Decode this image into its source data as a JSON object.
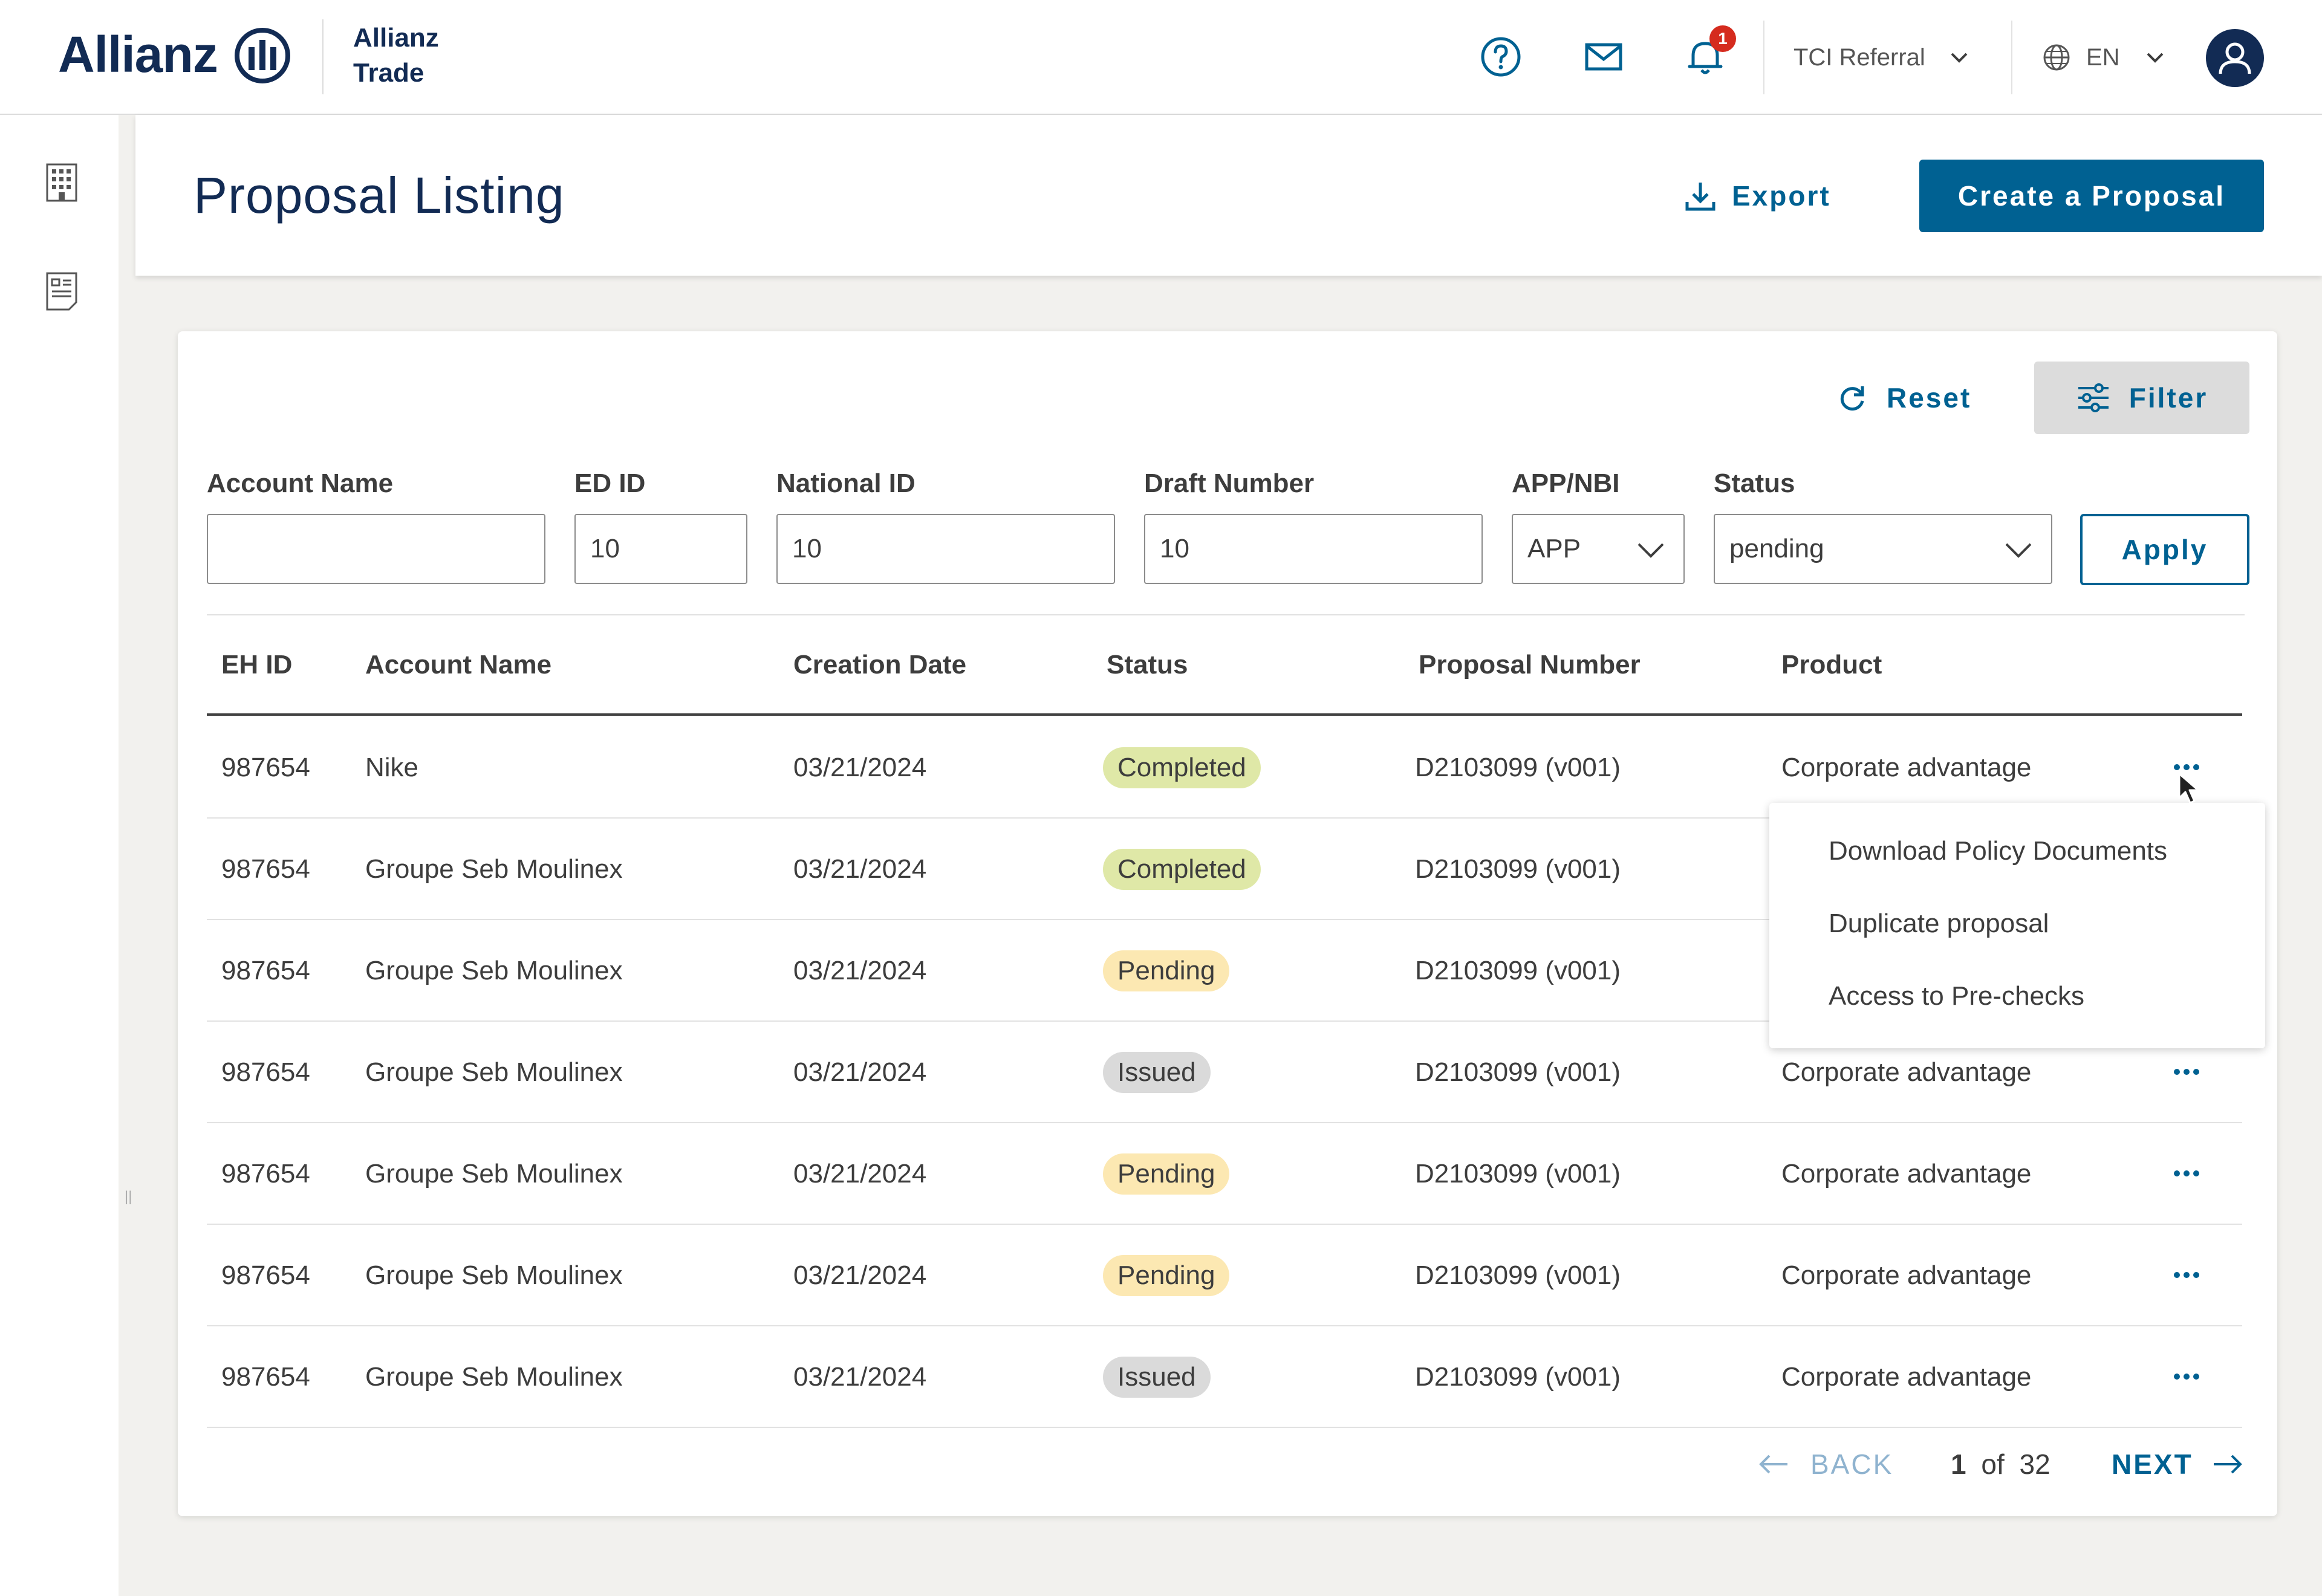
{
  "brand": {
    "name": "Allianz",
    "sub_line1": "Allianz",
    "sub_line2": "Trade"
  },
  "header": {
    "notification_count": "1",
    "referral_dropdown": "TCI Referral",
    "language": "EN",
    "icons": [
      "help-icon",
      "mail-icon",
      "bell-icon",
      "globe-icon",
      "user-icon"
    ]
  },
  "sidebar": {
    "icons": [
      "building-icon",
      "document-list-icon"
    ]
  },
  "page": {
    "title": "Proposal Listing",
    "export_label": "Export",
    "create_label": "Create a Proposal"
  },
  "filters": {
    "reset_label": "Reset",
    "filter_label": "Filter",
    "apply_label": "Apply",
    "fields": {
      "account_name": {
        "label": "Account Name",
        "value": ""
      },
      "ed_id": {
        "label": "ED ID",
        "value": "10"
      },
      "national_id": {
        "label": "National ID",
        "value": "10"
      },
      "draft_number": {
        "label": "Draft Number",
        "value": "10"
      },
      "app_nbi": {
        "label": "APP/NBI",
        "value": "APP"
      },
      "status": {
        "label": "Status",
        "value": "pending"
      }
    }
  },
  "table": {
    "columns": [
      "EH ID",
      "Account Name",
      "Creation Date",
      "Status",
      "Proposal Number",
      "Product"
    ],
    "rows": [
      {
        "eh_id": "987654",
        "account": "Nike",
        "date": "03/21/2024",
        "status": "Completed",
        "status_kind": "completed",
        "proposal": "D2103099 (v001)",
        "product": "Corporate advantage"
      },
      {
        "eh_id": "987654",
        "account": "Groupe Seb Moulinex",
        "date": "03/21/2024",
        "status": "Completed",
        "status_kind": "completed",
        "proposal": "D2103099 (v001)",
        "product": ""
      },
      {
        "eh_id": "987654",
        "account": "Groupe Seb Moulinex",
        "date": "03/21/2024",
        "status": "Pending",
        "status_kind": "pending",
        "proposal": "D2103099 (v001)",
        "product": ""
      },
      {
        "eh_id": "987654",
        "account": "Groupe Seb Moulinex",
        "date": "03/21/2024",
        "status": "Issued",
        "status_kind": "issued",
        "proposal": "D2103099 (v001)",
        "product": "Corporate advantage"
      },
      {
        "eh_id": "987654",
        "account": "Groupe Seb Moulinex",
        "date": "03/21/2024",
        "status": "Pending",
        "status_kind": "pending",
        "proposal": "D2103099 (v001)",
        "product": "Corporate advantage"
      },
      {
        "eh_id": "987654",
        "account": "Groupe Seb Moulinex",
        "date": "03/21/2024",
        "status": "Pending",
        "status_kind": "pending",
        "proposal": "D2103099 (v001)",
        "product": "Corporate advantage"
      },
      {
        "eh_id": "987654",
        "account": "Groupe Seb Moulinex",
        "date": "03/21/2024",
        "status": "Issued",
        "status_kind": "issued",
        "proposal": "D2103099 (v001)",
        "product": "Corporate advantage"
      }
    ]
  },
  "context_menu": {
    "items": [
      "Download Policy Documents",
      "Duplicate proposal",
      "Access to Pre-checks"
    ]
  },
  "pagination": {
    "back_label": "BACK",
    "current": "1",
    "of_label": "of",
    "total": "32",
    "next_label": "NEXT"
  },
  "colors": {
    "brand_navy": "#122b54",
    "accent_blue": "#006192",
    "status_completed": "#dfe8a7",
    "status_pending": "#fce8b2",
    "status_issued": "#dadada",
    "notification_red": "#d52b1e"
  }
}
